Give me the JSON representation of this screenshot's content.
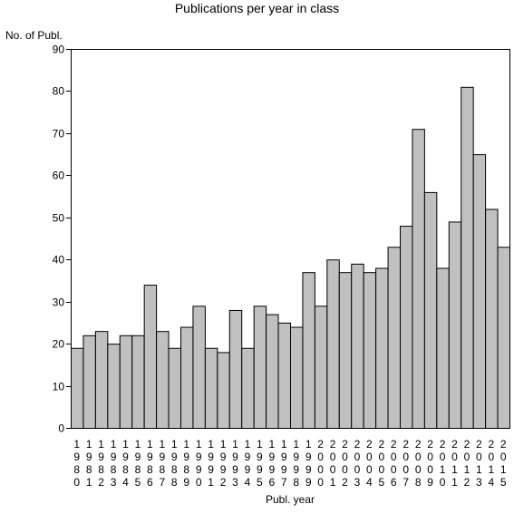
{
  "chart_data": {
    "type": "bar",
    "title": "Publications per year in class",
    "ylabel": "No. of Publ.",
    "xlabel": "Publ. year",
    "ylim": [
      0,
      90
    ],
    "yticks": [
      0,
      10,
      20,
      30,
      40,
      50,
      60,
      70,
      80,
      90
    ],
    "grid": false,
    "bar_color": "#c0c0c0",
    "edge_color": "#000000",
    "categories": [
      "1980",
      "1981",
      "1982",
      "1983",
      "1984",
      "1985",
      "1986",
      "1987",
      "1988",
      "1989",
      "1990",
      "1991",
      "1992",
      "1993",
      "1994",
      "1995",
      "1996",
      "1997",
      "1998",
      "1999",
      "2000",
      "2001",
      "2002",
      "2003",
      "2004",
      "2005",
      "2006",
      "2007",
      "2008",
      "2009",
      "2010",
      "2011",
      "2012",
      "2013",
      "2014",
      "2015"
    ],
    "values": [
      19,
      22,
      23,
      20,
      22,
      22,
      34,
      23,
      19,
      24,
      29,
      19,
      18,
      28,
      19,
      29,
      27,
      25,
      24,
      37,
      29,
      40,
      37,
      39,
      37,
      38,
      43,
      48,
      71,
      56,
      38,
      49,
      81,
      65,
      52,
      43
    ]
  }
}
